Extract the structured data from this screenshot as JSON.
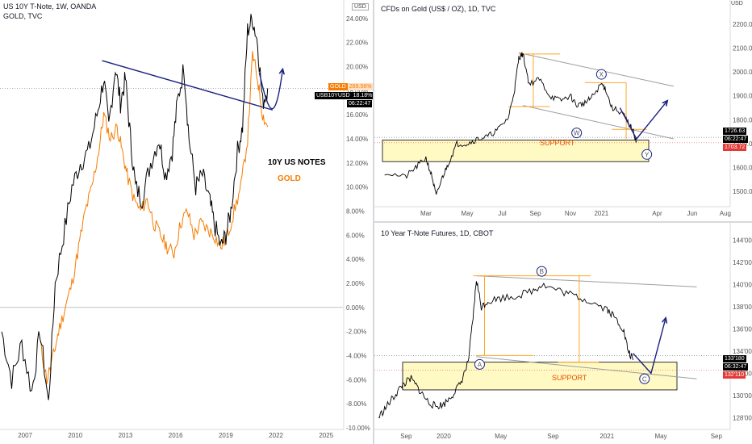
{
  "left_chart": {
    "title_line1": "US 10Y T-Note, 1W, OANDA",
    "title_line2": "GOLD, TVC",
    "currency_badge": "USD",
    "label_notes": "10Y US NOTES",
    "label_gold": "GOLD",
    "badge_gold_name": "GOLD",
    "badge_gold_value": "289.56%",
    "badge_notes_name": "USB10YUSD",
    "badge_notes_value": "18.18%",
    "badge_time": "06:22:47",
    "colors": {
      "notes": "#000000",
      "gold": "#f57c00",
      "trend": "#1a237e",
      "arrow": "#1a237e"
    }
  },
  "gold_chart": {
    "title": "CFDs on Gold (US$ / OZ), 1D, TVC",
    "currency_badge": "USD",
    "support_label": "SUPPORT",
    "wave_labels": [
      "X",
      "W",
      "Y"
    ],
    "price_badge_1": "1726.63",
    "price_badge_time": "06:22:47",
    "price_badge_2": "1703.72"
  },
  "tnote_chart": {
    "title": "10 Year T-Note Futures, 1D, CBOT",
    "support_label": "SUPPORT",
    "wave_labels": [
      "A",
      "B",
      "C"
    ],
    "price_badge_1": "133'180",
    "price_badge_time": "06:32:47",
    "price_badge_2": "132'110"
  },
  "chart_data": [
    {
      "type": "line",
      "title": "US 10Y T-Note, 1W, OANDA",
      "series": [
        {
          "name": "US 10Y T-Note"
        },
        {
          "name": "GOLD"
        }
      ],
      "x_ticks": [
        "2007",
        "2010",
        "2013",
        "2016",
        "2019",
        "2022",
        "2025"
      ],
      "y_ticks": [
        "24.00%",
        "22.00%",
        "20.00%",
        "18.00%",
        "16.00%",
        "14.00%",
        "12.00%",
        "10.00%",
        "8.00%",
        "6.00%",
        "4.00%",
        "2.00%",
        "0.00%",
        "-2.00%",
        "-4.00%",
        "-6.00%",
        "-8.00%",
        "-10.00%"
      ],
      "ylim": [
        -10,
        25
      ],
      "x_range": [
        2005.5,
        2026
      ],
      "notes_points": [
        [
          2005.6,
          -2
        ],
        [
          2006.2,
          -6
        ],
        [
          2006.8,
          -3
        ],
        [
          2007.4,
          -7
        ],
        [
          2007.9,
          -2
        ],
        [
          2008.4,
          -8
        ],
        [
          2008.8,
          2
        ],
        [
          2009.3,
          6
        ],
        [
          2009.8,
          10
        ],
        [
          2010.3,
          12
        ],
        [
          2010.8,
          13
        ],
        [
          2011.3,
          16
        ],
        [
          2011.7,
          19
        ],
        [
          2012.0,
          15
        ],
        [
          2012.4,
          20
        ],
        [
          2012.7,
          17
        ],
        [
          2013.0,
          19
        ],
        [
          2013.3,
          14
        ],
        [
          2013.6,
          10
        ],
        [
          2014.0,
          9
        ],
        [
          2014.5,
          12
        ],
        [
          2015.0,
          14
        ],
        [
          2015.4,
          11
        ],
        [
          2015.8,
          13
        ],
        [
          2016.1,
          17
        ],
        [
          2016.5,
          20
        ],
        [
          2016.8,
          14
        ],
        [
          2017.2,
          10
        ],
        [
          2017.6,
          11
        ],
        [
          2018.0,
          9
        ],
        [
          2018.3,
          7
        ],
        [
          2018.7,
          5
        ],
        [
          2019.0,
          6
        ],
        [
          2019.3,
          8
        ],
        [
          2019.7,
          13
        ],
        [
          2020.0,
          15
        ],
        [
          2020.3,
          23
        ],
        [
          2020.6,
          24
        ],
        [
          2020.9,
          22
        ],
        [
          2021.2,
          17
        ],
        [
          2021.5,
          18.2
        ]
      ],
      "gold_points": [
        [
          2007.9,
          -3
        ],
        [
          2008.3,
          -6
        ],
        [
          2008.7,
          -4
        ],
        [
          2009.0,
          -2
        ],
        [
          2009.4,
          0
        ],
        [
          2009.8,
          2
        ],
        [
          2010.2,
          5
        ],
        [
          2010.6,
          8
        ],
        [
          2011.0,
          10
        ],
        [
          2011.4,
          13
        ],
        [
          2011.7,
          16
        ],
        [
          2012.1,
          14
        ],
        [
          2012.5,
          15
        ],
        [
          2012.8,
          13
        ],
        [
          2013.1,
          11
        ],
        [
          2013.5,
          9
        ],
        [
          2013.9,
          8
        ],
        [
          2014.3,
          9
        ],
        [
          2014.7,
          7
        ],
        [
          2015.1,
          6
        ],
        [
          2015.5,
          5
        ],
        [
          2015.9,
          4.5
        ],
        [
          2016.3,
          7
        ],
        [
          2016.7,
          8
        ],
        [
          2017.1,
          6
        ],
        [
          2017.5,
          7
        ],
        [
          2017.9,
          6.5
        ],
        [
          2018.3,
          6
        ],
        [
          2018.7,
          5
        ],
        [
          2019.1,
          6
        ],
        [
          2019.5,
          8
        ],
        [
          2019.9,
          10
        ],
        [
          2020.3,
          14
        ],
        [
          2020.6,
          21
        ],
        [
          2020.9,
          19
        ],
        [
          2021.2,
          16
        ],
        [
          2021.5,
          15
        ]
      ],
      "trendline": [
        [
          2011.6,
          20.5
        ],
        [
          2021.8,
          16.4
        ]
      ],
      "forecast_arrow": [
        [
          2021.0,
          19.5
        ],
        [
          2021.5,
          16.5
        ],
        [
          2021.9,
          16.0
        ],
        [
          2022.4,
          19.8
        ]
      ]
    },
    {
      "type": "line",
      "title": "CFDs on Gold (US$ / OZ), 1D, TVC",
      "x_ticks": [
        "Mar",
        "May",
        "Jul",
        "Sep",
        "Nov",
        "2021",
        "Apr",
        "Jun",
        "Aug"
      ],
      "y_ticks": [
        "2200.00",
        "2100.00",
        "2000.00",
        "1900.00",
        "1800.00",
        "1700.00",
        "1600.00",
        "1500.00"
      ],
      "ylim": [
        1440,
        2240
      ],
      "points": [
        [
          2019.95,
          1580
        ],
        [
          2020.05,
          1560
        ],
        [
          2020.1,
          1600
        ],
        [
          2020.15,
          1640
        ],
        [
          2020.18,
          1560
        ],
        [
          2020.2,
          1480
        ],
        [
          2020.23,
          1560
        ],
        [
          2020.26,
          1620
        ],
        [
          2020.3,
          1700
        ],
        [
          2020.35,
          1700
        ],
        [
          2020.4,
          1720
        ],
        [
          2020.45,
          1730
        ],
        [
          2020.5,
          1760
        ],
        [
          2020.55,
          1810
        ],
        [
          2020.58,
          1930
        ],
        [
          2020.6,
          2060
        ],
        [
          2020.62,
          2075
        ],
        [
          2020.65,
          1950
        ],
        [
          2020.7,
          1970
        ],
        [
          2020.75,
          1900
        ],
        [
          2020.8,
          1880
        ],
        [
          2020.85,
          1900
        ],
        [
          2020.88,
          1860
        ],
        [
          2020.92,
          1870
        ],
        [
          2020.95,
          1890
        ],
        [
          2021.0,
          1950
        ],
        [
          2021.02,
          1930
        ],
        [
          2021.05,
          1850
        ],
        [
          2021.1,
          1830
        ],
        [
          2021.12,
          1800
        ],
        [
          2021.15,
          1760
        ],
        [
          2021.17,
          1710
        ]
      ],
      "forecast_arrow": [
        [
          2021.17,
          1720
        ],
        [
          2021.22,
          1770
        ],
        [
          2021.26,
          1820
        ],
        [
          2021.32,
          1880
        ]
      ],
      "support_zone": [
        1625,
        1715
      ],
      "upper_channel": [
        [
          2020.6,
          2080
        ],
        [
          2021.35,
          1940
        ]
      ],
      "lower_channel": [
        [
          2020.62,
          1860
        ],
        [
          2021.35,
          1720
        ]
      ]
    },
    {
      "type": "line",
      "title": "10 Year T-Note Futures, 1D, CBOT",
      "x_ticks": [
        "Sep",
        "2020",
        "May",
        "Sep",
        "2021",
        "May",
        "Sep"
      ],
      "y_ticks": [
        "144'000",
        "142'000",
        "140'000",
        "138'000",
        "136'000",
        "134'000",
        "132'000",
        "130'000",
        "128'000"
      ],
      "ylim": [
        127,
        145
      ],
      "points": [
        [
          2019.6,
          128
        ],
        [
          2019.65,
          129
        ],
        [
          2019.7,
          130
        ],
        [
          2019.75,
          131
        ],
        [
          2019.8,
          131.5
        ],
        [
          2019.85,
          130.5
        ],
        [
          2019.9,
          129.5
        ],
        [
          2019.95,
          129
        ],
        [
          2020.0,
          129.2
        ],
        [
          2020.05,
          130
        ],
        [
          2020.1,
          131
        ],
        [
          2020.15,
          133
        ],
        [
          2020.18,
          137
        ],
        [
          2020.2,
          140.5
        ],
        [
          2020.23,
          138
        ],
        [
          2020.27,
          138.5
        ],
        [
          2020.35,
          138.8
        ],
        [
          2020.45,
          139
        ],
        [
          2020.55,
          139.5
        ],
        [
          2020.6,
          140
        ],
        [
          2020.7,
          139.5
        ],
        [
          2020.8,
          139
        ],
        [
          2020.9,
          138.5
        ],
        [
          2021.0,
          137.8
        ],
        [
          2021.05,
          137
        ],
        [
          2021.1,
          136
        ],
        [
          2021.13,
          134
        ],
        [
          2021.16,
          133.2
        ]
      ],
      "forecast_arrow": [
        [
          2021.16,
          133.8
        ],
        [
          2021.22,
          132
        ],
        [
          2021.3,
          134.5
        ],
        [
          2021.36,
          137
        ]
      ],
      "support_zone": [
        130.5,
        133
      ],
      "upper_line": [
        [
          2020.2,
          140.8
        ],
        [
          2021.55,
          139.8
        ]
      ],
      "lower_line": [
        [
          2020.2,
          133.5
        ],
        [
          2021.55,
          131.5
        ]
      ]
    }
  ]
}
